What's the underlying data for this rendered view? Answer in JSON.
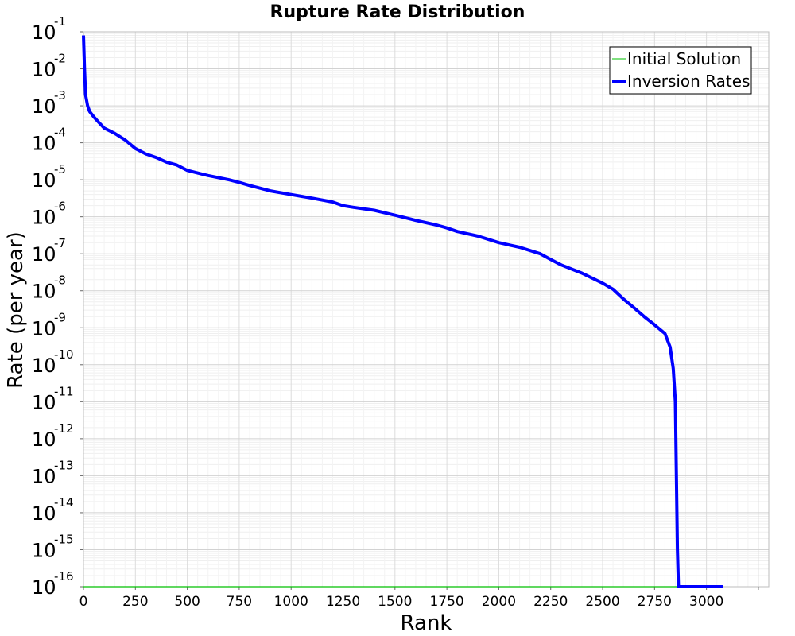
{
  "chart_data": {
    "type": "line",
    "title": "Rupture Rate Distribution",
    "xlabel": "Rank",
    "ylabel": "Rate (per year)",
    "xlim": [
      0,
      3300
    ],
    "ylim": [
      1e-16,
      0.1
    ],
    "y_scale": "log",
    "grid": true,
    "legend_position": "top-right",
    "x_ticks": [
      0,
      250,
      500,
      750,
      1000,
      1250,
      1500,
      1750,
      2000,
      2250,
      2500,
      2750,
      3000
    ],
    "y_tick_exponents": [
      -1,
      -2,
      -3,
      -4,
      -5,
      -6,
      -7,
      -8,
      -9,
      -10,
      -11,
      -12,
      -13,
      -14,
      -15,
      -16
    ],
    "series": [
      {
        "name": "Initial Solution",
        "color": "#00c000",
        "x": [
          0,
          3080
        ],
        "y": [
          1e-16,
          1e-16
        ]
      },
      {
        "name": "Inversion Rates",
        "color": "#0000ff",
        "x": [
          0,
          5,
          10,
          20,
          30,
          50,
          75,
          100,
          150,
          200,
          250,
          300,
          350,
          400,
          450,
          500,
          600,
          700,
          750,
          800,
          900,
          1000,
          1100,
          1200,
          1250,
          1300,
          1400,
          1500,
          1600,
          1700,
          1750,
          1800,
          1900,
          2000,
          2100,
          2200,
          2250,
          2300,
          2400,
          2500,
          2550,
          2600,
          2650,
          2700,
          2750,
          2800,
          2825,
          2840,
          2850,
          2855,
          2860,
          2865,
          3080
        ],
        "y": [
          0.08,
          0.01,
          0.002,
          0.001,
          0.0007,
          0.0005,
          0.00035,
          0.00025,
          0.00018,
          0.00012,
          7e-05,
          5e-05,
          4e-05,
          3e-05,
          2.5e-05,
          1.8e-05,
          1.3e-05,
          1e-05,
          8.5e-06,
          7e-06,
          5e-06,
          4e-06,
          3.2e-06,
          2.5e-06,
          2e-06,
          1.8e-06,
          1.5e-06,
          1.1e-06,
          8e-07,
          6e-07,
          5e-07,
          4e-07,
          3e-07,
          2e-07,
          1.5e-07,
          1e-07,
          7e-08,
          5e-08,
          3e-08,
          1.6e-08,
          1.1e-08,
          6e-09,
          3.5e-09,
          2e-09,
          1.2e-09,
          7e-10,
          3e-10,
          8e-11,
          1e-11,
          1e-13,
          1e-15,
          1e-16,
          1e-16
        ]
      }
    ]
  }
}
